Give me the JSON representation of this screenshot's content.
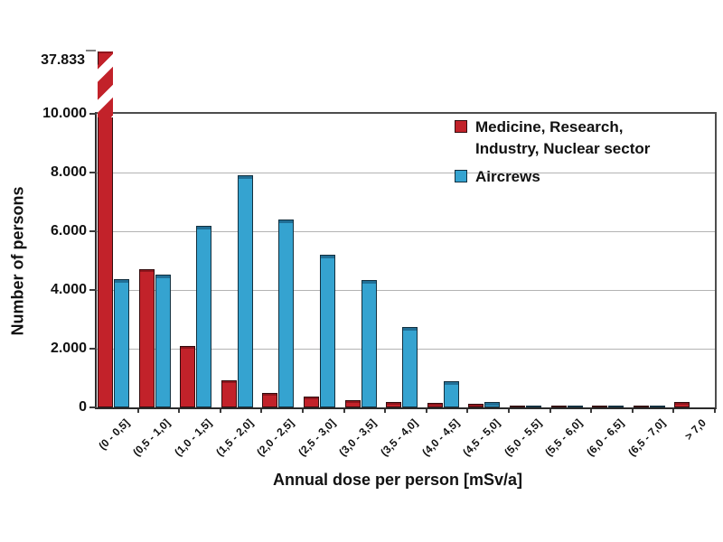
{
  "chart_data": {
    "type": "bar",
    "title": "",
    "xlabel": "Annual dose per person [mSv/a]",
    "ylabel": "Number of persons",
    "ylim": [
      0,
      10000
    ],
    "y_tick_values": [
      0,
      2000,
      4000,
      6000,
      8000,
      10000
    ],
    "y_tick_labels": [
      "0",
      "2.000",
      "4.000",
      "6.000",
      "8.000",
      "10.000"
    ],
    "grid": "horizontal gridlines at 2.000 steps",
    "legend_position": "inside-top-right",
    "categories": [
      "(0 - 0,5]",
      "(0,5 - 1,0]",
      "(1,0 - 1,5]",
      "(1,5 - 2,0]",
      "(2,0 - 2,5]",
      "(2,5 - 3,0]",
      "(3,0 - 3,5]",
      "(3,5 - 4,0]",
      "(4,0 - 4,5]",
      "(4,5 - 5,0]",
      "(5,0 - 5,5]",
      "(5,5 - 6,0]",
      "(6,0 - 6,5]",
      "(6,5 - 7,0]",
      "> 7,0"
    ],
    "series": [
      {
        "key": "medicine",
        "name": "Medicine, Research, Industry, Nuclear sector",
        "color": "#c2222a",
        "values": [
          37833,
          4700,
          2100,
          930,
          490,
          370,
          250,
          190,
          150,
          110,
          60,
          50,
          60,
          50,
          190
        ]
      },
      {
        "key": "aircrews",
        "name": "Aircrews",
        "color": "#35a3d0",
        "values": [
          4380,
          4510,
          6180,
          7900,
          6400,
          5200,
          4330,
          2750,
          880,
          170,
          30,
          20,
          20,
          20,
          0
        ]
      }
    ],
    "broken_bar": {
      "series_key": "medicine",
      "category_index": 0,
      "value": 37833,
      "label": "37.833",
      "style": "axis break shown with white diagonal stripes"
    }
  },
  "colors": {
    "medicine_red": "#c2222a",
    "aircrews_blue": "#35a3d0",
    "gridline_gray": "#b3b3b3",
    "frame_gray": "#4d4d4d",
    "background": "#ffffff"
  }
}
